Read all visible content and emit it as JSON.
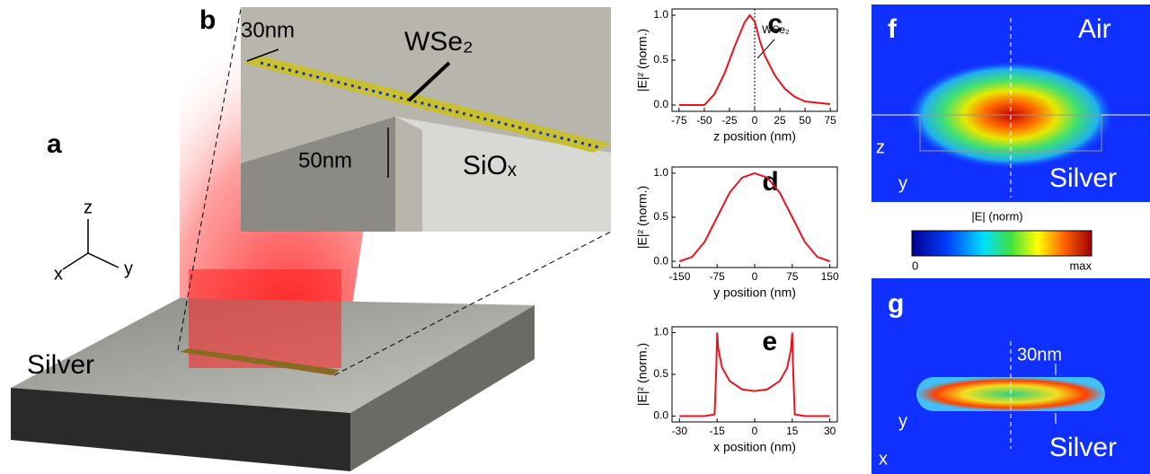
{
  "figure": {
    "a": {
      "label": "a",
      "material": "Silver",
      "axes": [
        "z",
        "x",
        "y"
      ]
    },
    "b": {
      "label": "b",
      "width": "30nm",
      "material": "WSe₂",
      "depth": "50nm",
      "substrate": "SiOₓ"
    },
    "f": {
      "label": "f",
      "top": "Air",
      "bottom": "Silver",
      "axes": [
        "z",
        "y"
      ]
    },
    "colorbar": {
      "title": "|E| (norm)",
      "min": "0",
      "max": "max"
    },
    "g": {
      "label": "g",
      "width": "30nm",
      "axes": [
        "y",
        "x"
      ],
      "bottom": "Silver"
    }
  },
  "chart_data": [
    {
      "type": "line",
      "label": "c",
      "xlabel": "z position (nm)",
      "ylabel": "|E|² (norm.)",
      "color": "#e8141c",
      "annotation": {
        "text": "WSe₂",
        "x": 0
      },
      "x": [
        -75,
        -50,
        -40,
        -30,
        -20,
        -10,
        -5,
        0,
        5,
        10,
        20,
        30,
        40,
        50,
        75
      ],
      "values": [
        0,
        0,
        0.12,
        0.35,
        0.65,
        0.92,
        1.0,
        0.93,
        0.72,
        0.55,
        0.33,
        0.18,
        0.09,
        0.04,
        0.01
      ],
      "xlim": [
        -82,
        82
      ],
      "ylim": [
        -0.07,
        1.07
      ],
      "xticks": [
        -75,
        -50,
        -25,
        0,
        25,
        50,
        75
      ],
      "yticks": [
        {
          "value": 0,
          "label": "0.0"
        },
        {
          "value": 0.5,
          "label": "0.5"
        },
        {
          "value": 1,
          "label": "1.0"
        }
      ]
    },
    {
      "type": "line",
      "label": "d",
      "xlabel": "y position (nm)",
      "ylabel": "|E|² (norm.)",
      "color": "#e8141c",
      "x": [
        -150,
        -125,
        -100,
        -75,
        -50,
        -25,
        0,
        25,
        50,
        75,
        100,
        125,
        150
      ],
      "values": [
        0,
        0.05,
        0.22,
        0.5,
        0.78,
        0.95,
        1.0,
        0.95,
        0.78,
        0.5,
        0.22,
        0.05,
        0
      ],
      "xlim": [
        -165,
        165
      ],
      "ylim": [
        -0.07,
        1.07
      ],
      "xticks": [
        -150,
        -75,
        0,
        75,
        150
      ],
      "yticks": [
        {
          "value": 0,
          "label": "0.0"
        },
        {
          "value": 0.5,
          "label": "0.5"
        },
        {
          "value": 1,
          "label": "1.0"
        }
      ]
    },
    {
      "type": "line",
      "label": "e",
      "xlabel": "x position (nm)",
      "ylabel": "|E|² (norm.)",
      "color": "#e8141c",
      "x": [
        -30,
        -20,
        -16,
        -15.3,
        -15,
        -14.5,
        -13,
        -10,
        -5,
        0,
        5,
        10,
        13,
        14.5,
        15,
        15.3,
        16,
        20,
        30
      ],
      "values": [
        0,
        0,
        0.02,
        0.6,
        1.0,
        0.8,
        0.58,
        0.42,
        0.32,
        0.3,
        0.32,
        0.42,
        0.58,
        0.8,
        1.0,
        0.6,
        0.02,
        0,
        0
      ],
      "xlim": [
        -33,
        33
      ],
      "ylim": [
        -0.07,
        1.07
      ],
      "xticks": [
        -30,
        -15,
        0,
        15,
        30
      ],
      "yticks": [
        {
          "value": 0,
          "label": "0.0"
        },
        {
          "value": 0.5,
          "label": "0.5"
        },
        {
          "value": 1,
          "label": "1.0"
        }
      ]
    }
  ]
}
